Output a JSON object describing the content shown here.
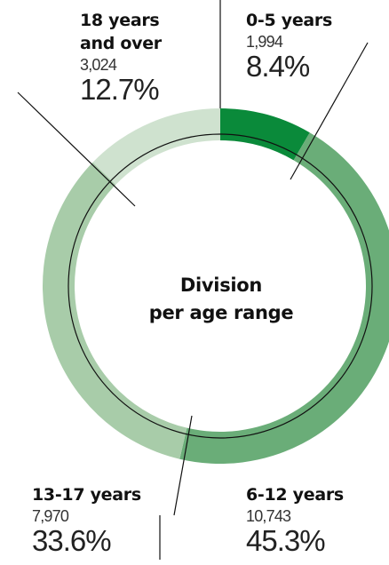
{
  "chart_data": {
    "type": "pie",
    "title": "Division per age range",
    "title_lines": [
      "Division",
      "per age range"
    ],
    "slices": [
      {
        "label": "0-5 years",
        "label_lines": [
          "0-5 years"
        ],
        "value": 1994,
        "value_text": "1,994",
        "percent": 8.4,
        "percent_text": "8.4%",
        "color": "#0a8a3a"
      },
      {
        "label": "6-12 years",
        "label_lines": [
          "6-12 years"
        ],
        "value": 10743,
        "value_text": "10,743",
        "percent": 45.3,
        "percent_text": "45.3%",
        "color": "#6aad78"
      },
      {
        "label": "13-17 years",
        "label_lines": [
          "13-17 years"
        ],
        "value": 7970,
        "value_text": "7,970",
        "percent": 33.6,
        "percent_text": "33.6%",
        "color": "#a8cca9"
      },
      {
        "label": "18 years and over",
        "label_lines": [
          "18 years",
          "and over"
        ],
        "value": 3024,
        "value_text": "3,024",
        "percent": 12.7,
        "percent_text": "12.7%",
        "color": "#cfe2cf"
      }
    ]
  }
}
